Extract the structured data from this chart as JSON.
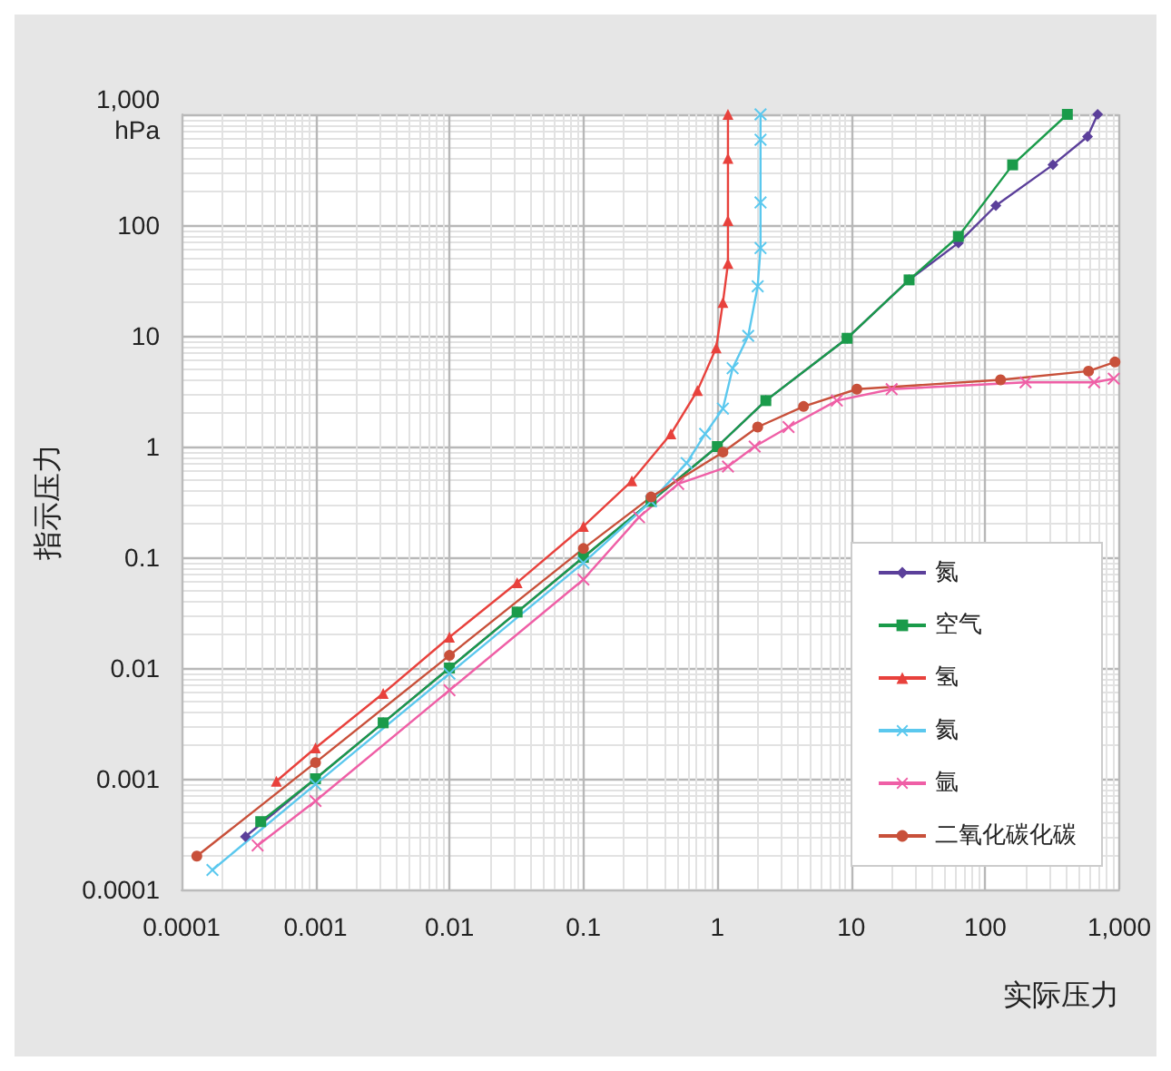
{
  "chart_data": {
    "type": "line",
    "xlabel": "实际压力",
    "ylabel": "指示压力",
    "log": "xy",
    "grid": true,
    "legend": "bottom right",
    "xlim": [
      0.0001,
      1000
    ],
    "ylim": [
      0.0001,
      1000
    ],
    "xticks": [
      0.0001,
      0.001,
      0.01,
      0.1,
      1,
      10,
      100,
      {
        "value": 1000,
        "label": "1,000"
      }
    ],
    "yticks": [
      0.0001,
      0.001,
      0.01,
      0.1,
      1,
      10,
      100,
      {
        "value": 1000,
        "label": "1,000\nhPa"
      }
    ],
    "series": [
      {
        "name": "氮",
        "color": "#5b3f9a",
        "marker": "diamond",
        "x": [
          0.0003,
          0.001,
          0.0032,
          0.01,
          0.032,
          0.1,
          0.32,
          1,
          2.3,
          9.3,
          27,
          63,
          120,
          320,
          580,
          690
        ],
        "values": [
          0.0003,
          0.001,
          0.0032,
          0.01,
          0.032,
          0.1,
          0.32,
          1,
          2.6,
          9.5,
          32,
          69,
          150,
          350,
          630,
          1000
        ]
      },
      {
        "name": "空气",
        "color": "#1a9b4a",
        "marker": "square",
        "x": [
          0.00039,
          0.001,
          0.0032,
          0.01,
          0.032,
          0.1,
          0.32,
          1,
          2.3,
          9.3,
          27,
          63,
          160,
          410
        ],
        "values": [
          0.00041,
          0.001,
          0.0032,
          0.01,
          0.032,
          0.1,
          0.32,
          1,
          2.6,
          9.5,
          32,
          79,
          350,
          1000
        ]
      },
      {
        "name": "氢",
        "color": "#e8413c",
        "marker": "triangle",
        "x": [
          0.00051,
          0.001,
          0.0032,
          0.01,
          0.032,
          0.1,
          0.23,
          0.45,
          0.71,
          0.98,
          1.1,
          1.2,
          1.2,
          1.2,
          1.2
        ],
        "values": [
          0.00095,
          0.0019,
          0.0059,
          0.019,
          0.059,
          0.19,
          0.49,
          1.3,
          3.2,
          7.8,
          20,
          45,
          110,
          400,
          1000
        ]
      },
      {
        "name": "氦",
        "color": "#5bc8ee",
        "marker": "cross",
        "x": [
          0.00017,
          0.001,
          0.01,
          0.1,
          0.32,
          0.59,
          0.81,
          1.1,
          1.3,
          1.7,
          2,
          2.1,
          2.1,
          2.1,
          2.1
        ],
        "values": [
          0.00015,
          0.00089,
          0.0089,
          0.089,
          0.32,
          0.71,
          1.3,
          2.2,
          5.1,
          10,
          28,
          62,
          160,
          590,
          1000
        ]
      },
      {
        "name": "氩",
        "color": "#ef5fa6",
        "marker": "cross",
        "x": [
          0.00037,
          0.001,
          0.01,
          0.1,
          0.26,
          0.51,
          1.2,
          1.9,
          3.4,
          7.8,
          20,
          200,
          650,
          910
        ],
        "values": [
          0.00025,
          0.00063,
          0.0063,
          0.063,
          0.23,
          0.46,
          0.66,
          1,
          1.5,
          2.6,
          3.3,
          3.8,
          3.8,
          4.1
        ]
      },
      {
        "name": "二氧化碳化碳",
        "color": "#c8503a",
        "marker": "circle",
        "x": [
          0.00013,
          0.001,
          0.01,
          0.1,
          0.32,
          1.1,
          2,
          4.4,
          11,
          130,
          590,
          930
        ],
        "values": [
          0.0002,
          0.0014,
          0.013,
          0.12,
          0.35,
          0.89,
          1.5,
          2.3,
          3.3,
          4,
          4.8,
          5.8
        ]
      }
    ]
  }
}
